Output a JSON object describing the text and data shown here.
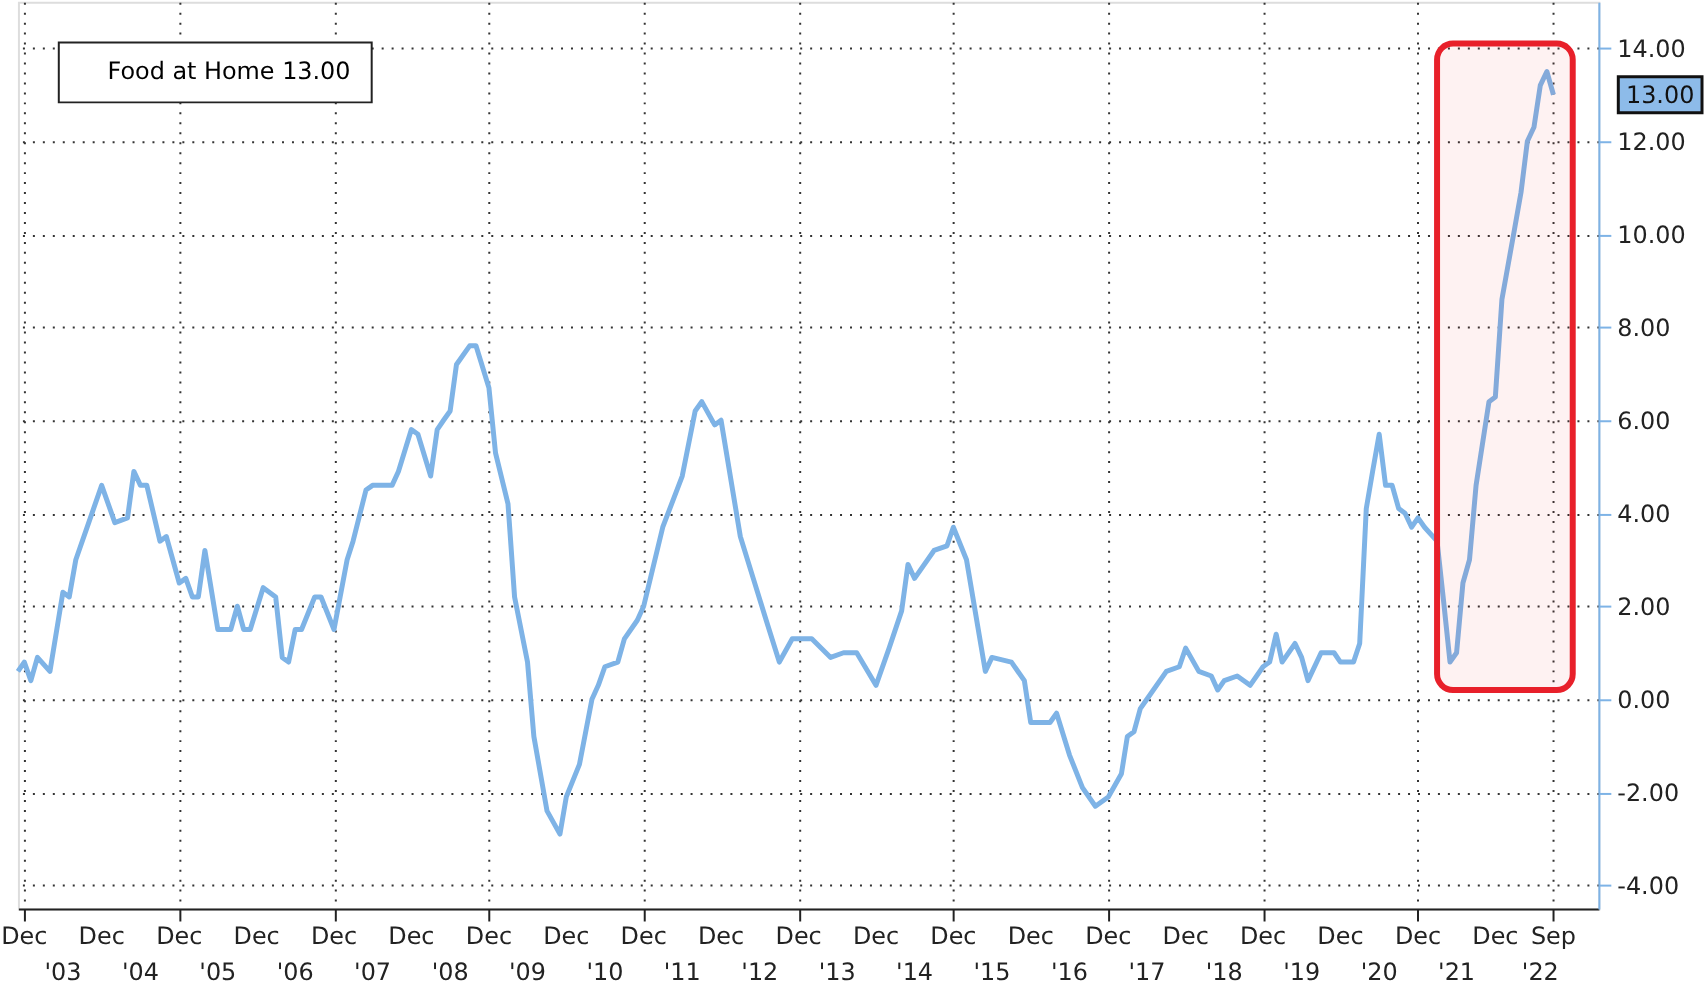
{
  "chart_data": {
    "type": "line",
    "x": [
      "2002-11",
      "2002-12",
      "2003-01",
      "2003-02",
      "2003-04",
      "2003-06",
      "2003-07",
      "2003-08",
      "2003-10",
      "2003-12",
      "2004-02",
      "2004-04",
      "2004-05",
      "2004-06",
      "2004-07",
      "2004-09",
      "2004-10",
      "2004-12",
      "2005-01",
      "2005-02",
      "2005-03",
      "2005-04",
      "2005-06",
      "2005-08",
      "2005-09",
      "2005-10",
      "2005-11",
      "2006-01",
      "2006-03",
      "2006-04",
      "2006-05",
      "2006-06",
      "2006-07",
      "2006-09",
      "2006-10",
      "2006-12",
      "2007-02",
      "2007-03",
      "2007-05",
      "2007-06",
      "2007-09",
      "2007-10",
      "2007-12",
      "2008-01",
      "2008-03",
      "2008-04",
      "2008-05",
      "2008-06",
      "2008-07",
      "2008-09",
      "2008-10",
      "2008-12",
      "2009-01",
      "2009-03",
      "2009-04",
      "2009-06",
      "2009-07",
      "2009-09",
      "2009-11",
      "2009-12",
      "2010-02",
      "2010-04",
      "2010-05",
      "2010-06",
      "2010-08",
      "2010-09",
      "2010-11",
      "2010-12",
      "2011-03",
      "2011-06",
      "2011-08",
      "2011-09",
      "2011-11",
      "2011-12",
      "2012-03",
      "2012-05",
      "2012-07",
      "2012-09",
      "2012-11",
      "2013-02",
      "2013-05",
      "2013-07",
      "2013-09",
      "2013-12",
      "2014-02",
      "2014-04",
      "2014-05",
      "2014-06",
      "2014-09",
      "2014-11",
      "2014-12",
      "2015-02",
      "2015-05",
      "2015-06",
      "2015-09",
      "2015-11",
      "2015-12",
      "2016-03",
      "2016-04",
      "2016-06",
      "2016-08",
      "2016-10",
      "2016-12",
      "2017-02",
      "2017-03",
      "2017-04",
      "2017-05",
      "2017-06",
      "2017-09",
      "2017-11",
      "2017-12",
      "2018-02",
      "2018-04",
      "2018-05",
      "2018-06",
      "2018-08",
      "2018-10",
      "2018-12",
      "2019-01",
      "2019-02",
      "2019-03",
      "2019-05",
      "2019-06",
      "2019-07",
      "2019-09",
      "2019-11",
      "2019-12",
      "2020-02",
      "2020-03",
      "2020-04",
      "2020-05",
      "2020-06",
      "2020-07",
      "2020-08",
      "2020-09",
      "2020-10",
      "2020-11",
      "2020-12",
      "2021-01",
      "2021-03",
      "2021-04",
      "2021-05",
      "2021-06",
      "2021-07",
      "2021-08",
      "2021-09",
      "2021-11",
      "2021-12",
      "2022-01",
      "2022-03",
      "2022-04",
      "2022-05",
      "2022-06",
      "2022-07",
      "2022-08",
      "2022-09"
    ],
    "series": [
      {
        "name": "Food at Home 13.00",
        "color": "#7eb3e6",
        "values": [
          0.6,
          0.8,
          0.4,
          0.9,
          0.6,
          2.3,
          2.2,
          3.0,
          3.8,
          4.6,
          3.8,
          3.9,
          4.9,
          4.6,
          4.6,
          3.4,
          3.5,
          2.5,
          2.6,
          2.2,
          2.2,
          3.2,
          1.5,
          1.5,
          2.0,
          1.5,
          1.5,
          2.4,
          2.2,
          0.9,
          0.8,
          1.5,
          1.5,
          2.2,
          2.2,
          1.5,
          3.0,
          3.4,
          4.5,
          4.6,
          4.6,
          4.9,
          5.8,
          5.7,
          4.8,
          5.8,
          6.0,
          6.2,
          7.2,
          7.6,
          7.6,
          6.7,
          5.3,
          4.2,
          2.2,
          0.8,
          -0.8,
          -2.4,
          -2.9,
          -2.1,
          -1.4,
          0.0,
          0.3,
          0.7,
          0.8,
          1.3,
          1.7,
          2.0,
          3.7,
          4.8,
          6.2,
          6.4,
          5.9,
          6.0,
          3.5,
          2.6,
          1.7,
          0.8,
          1.3,
          1.3,
          0.9,
          1.0,
          1.0,
          0.3,
          1.1,
          1.9,
          2.9,
          2.6,
          3.2,
          3.3,
          3.7,
          3.0,
          0.6,
          0.9,
          0.8,
          0.4,
          -0.5,
          -0.5,
          -0.3,
          -1.2,
          -1.9,
          -2.3,
          -2.1,
          -1.6,
          -0.8,
          -0.7,
          -0.2,
          0.0,
          0.6,
          0.7,
          1.1,
          0.6,
          0.5,
          0.2,
          0.4,
          0.5,
          0.3,
          0.7,
          0.8,
          1.4,
          0.8,
          1.2,
          0.9,
          0.4,
          1.0,
          1.0,
          0.8,
          0.8,
          1.2,
          4.1,
          4.9,
          5.7,
          4.6,
          4.6,
          4.1,
          4.0,
          3.7,
          3.9,
          3.7,
          3.4,
          2.1,
          0.8,
          1.0,
          2.5,
          3.0,
          4.6,
          6.4,
          6.5,
          8.6,
          10.1,
          10.9,
          12.0,
          12.3,
          13.2,
          13.5,
          13.0
        ]
      }
    ],
    "xlim": [
      "2002-11",
      "2023-04"
    ],
    "xticks": [
      {
        "value": "2002-12",
        "label": "Dec"
      },
      {
        "value": "2003-12",
        "label": "Dec"
      },
      {
        "value": "2004-12",
        "label": "Dec"
      },
      {
        "value": "2005-12",
        "label": "Dec"
      },
      {
        "value": "2006-12",
        "label": "Dec"
      },
      {
        "value": "2007-12",
        "label": "Dec"
      },
      {
        "value": "2008-12",
        "label": "Dec"
      },
      {
        "value": "2009-12",
        "label": "Dec"
      },
      {
        "value": "2010-12",
        "label": "Dec"
      },
      {
        "value": "2011-12",
        "label": "Dec"
      },
      {
        "value": "2012-12",
        "label": "Dec"
      },
      {
        "value": "2013-12",
        "label": "Dec"
      },
      {
        "value": "2014-12",
        "label": "Dec"
      },
      {
        "value": "2015-12",
        "label": "Dec"
      },
      {
        "value": "2016-12",
        "label": "Dec"
      },
      {
        "value": "2017-12",
        "label": "Dec"
      },
      {
        "value": "2018-12",
        "label": "Dec"
      },
      {
        "value": "2019-12",
        "label": "Dec"
      },
      {
        "value": "2020-12",
        "label": "Dec"
      },
      {
        "value": "2021-12",
        "label": "Dec"
      },
      {
        "value": "2022-09",
        "label": "Sep"
      }
    ],
    "x2lim": [
      "2002-11",
      "2023-04"
    ],
    "x2ticks": [
      {
        "value": "2003-06",
        "label": "'03"
      },
      {
        "value": "2004-06",
        "label": "'04"
      },
      {
        "value": "2005-06",
        "label": "'05"
      },
      {
        "value": "2006-06",
        "label": "'06"
      },
      {
        "value": "2007-06",
        "label": "'07"
      },
      {
        "value": "2008-06",
        "label": "'08"
      },
      {
        "value": "2009-06",
        "label": "'09"
      },
      {
        "value": "2010-06",
        "label": "'10"
      },
      {
        "value": "2011-06",
        "label": "'11"
      },
      {
        "value": "2012-06",
        "label": "'12"
      },
      {
        "value": "2013-06",
        "label": "'13"
      },
      {
        "value": "2014-06",
        "label": "'14"
      },
      {
        "value": "2015-06",
        "label": "'15"
      },
      {
        "value": "2016-06",
        "label": "'16"
      },
      {
        "value": "2017-06",
        "label": "'17"
      },
      {
        "value": "2018-06",
        "label": "'18"
      },
      {
        "value": "2019-06",
        "label": "'19"
      },
      {
        "value": "2020-06",
        "label": "'20"
      },
      {
        "value": "2021-06",
        "label": "'21"
      },
      {
        "value": "2022-07",
        "label": "'22"
      }
    ],
    "ylim": [
      -4.5,
      15
    ],
    "yticks": [
      {
        "value": -4,
        "label": "-4.00"
      },
      {
        "value": -2,
        "label": "-2.00"
      },
      {
        "value": 0,
        "label": "0.00"
      },
      {
        "value": 2,
        "label": "2.00"
      },
      {
        "value": 4,
        "label": "4.00"
      },
      {
        "value": 6,
        "label": "6.00"
      },
      {
        "value": 8,
        "label": "8.00"
      },
      {
        "value": 10,
        "label": "10.00"
      },
      {
        "value": 12,
        "label": "12.00"
      },
      {
        "value": 14,
        "label": "14.00"
      }
    ],
    "bands": [
      {
        "axis": "x",
        "from": "2021-03",
        "to": "2022-12",
        "color": "#e8202a"
      }
    ],
    "annotations": [
      "13.00"
    ],
    "grid": true,
    "legend": "top left",
    "line_style": "solid",
    "marker": "none"
  }
}
